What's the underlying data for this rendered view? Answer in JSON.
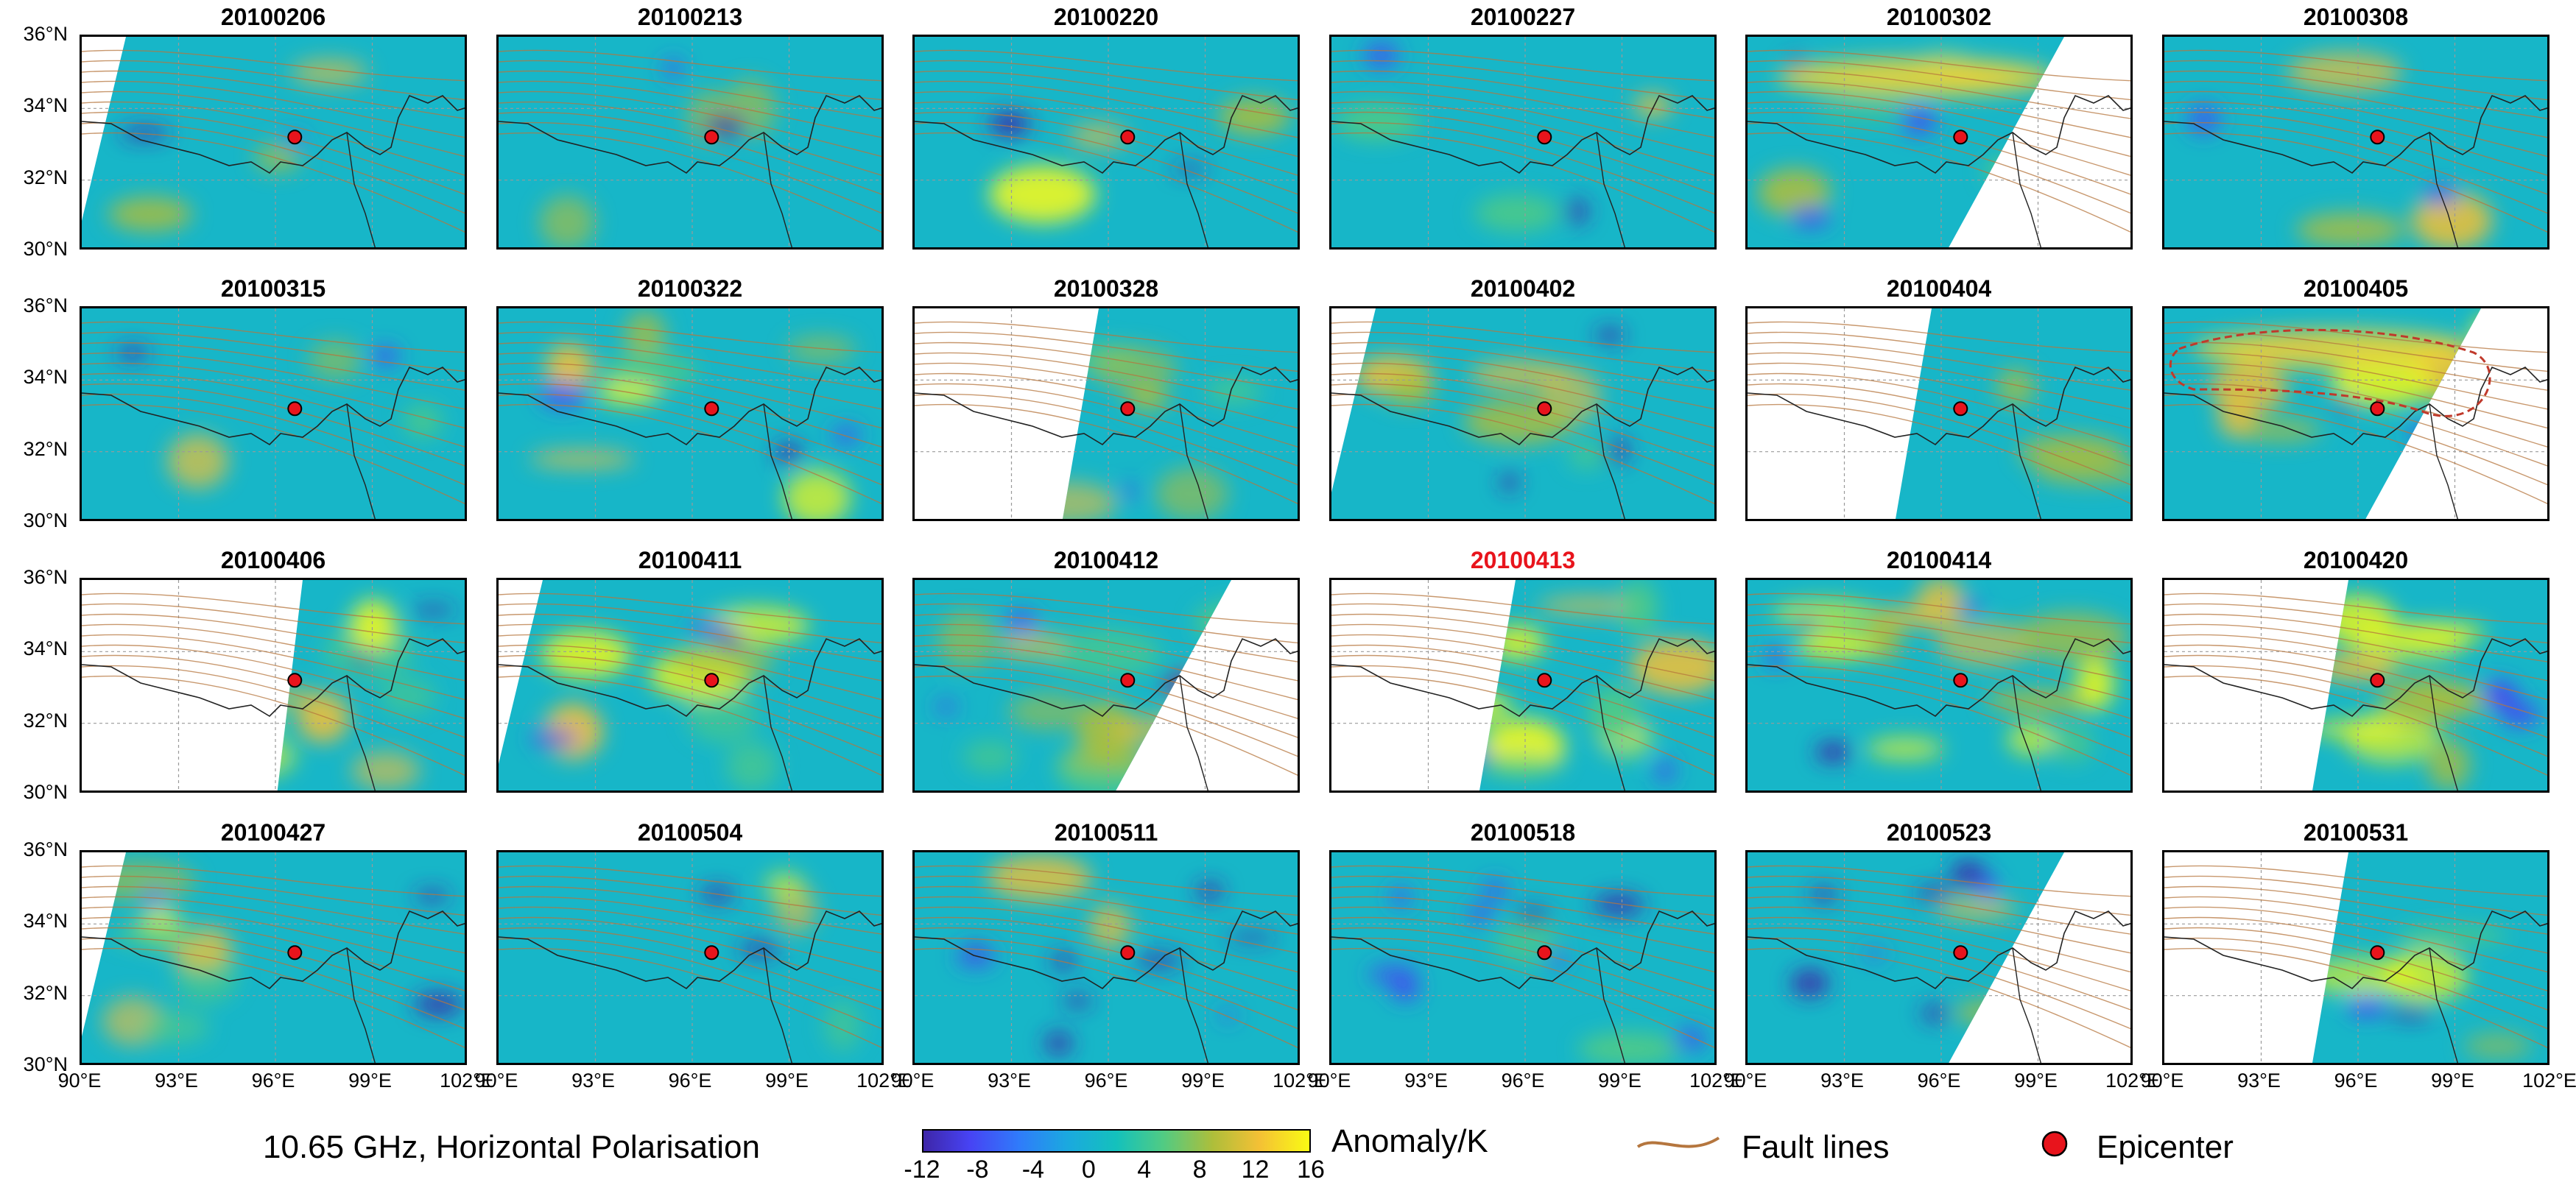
{
  "chart_data": {
    "type": "heatmap",
    "figure_caption": "10.65 GHz, Horizontal Polarisation",
    "grid": true,
    "panels": [
      {
        "date": "20100206",
        "highlight": false,
        "swath": "left-edge",
        "anomaly": "weak"
      },
      {
        "date": "20100213",
        "highlight": false,
        "swath": "full",
        "anomaly": "weak"
      },
      {
        "date": "20100220",
        "highlight": false,
        "swath": "full",
        "anomaly": "weak"
      },
      {
        "date": "20100227",
        "highlight": false,
        "swath": "full",
        "anomaly": "weak"
      },
      {
        "date": "20100302",
        "highlight": false,
        "swath": "right-cut",
        "anomaly": "north-band"
      },
      {
        "date": "20100308",
        "highlight": false,
        "swath": "full",
        "anomaly": "weak"
      },
      {
        "date": "20100315",
        "highlight": false,
        "swath": "full",
        "anomaly": "weak"
      },
      {
        "date": "20100322",
        "highlight": false,
        "swath": "full",
        "anomaly": "moderate"
      },
      {
        "date": "20100328",
        "highlight": false,
        "swath": "partial-left",
        "anomaly": "moderate"
      },
      {
        "date": "20100402",
        "highlight": false,
        "swath": "left-edge",
        "anomaly": "moderate"
      },
      {
        "date": "20100404",
        "highlight": false,
        "swath": "partial-left",
        "anomaly": "moderate"
      },
      {
        "date": "20100405",
        "highlight": false,
        "swath": "right-cut",
        "anomaly": "strong-band"
      },
      {
        "date": "20100406",
        "highlight": false,
        "swath": "narrow-left",
        "anomaly": "strong"
      },
      {
        "date": "20100411",
        "highlight": false,
        "swath": "left-edge",
        "anomaly": "moderate"
      },
      {
        "date": "20100412",
        "highlight": false,
        "swath": "right-cut",
        "anomaly": "strong"
      },
      {
        "date": "20100413",
        "highlight": true,
        "swath": "partial-left",
        "anomaly": "strong"
      },
      {
        "date": "20100414",
        "highlight": false,
        "swath": "full",
        "anomaly": "strong"
      },
      {
        "date": "20100420",
        "highlight": false,
        "swath": "partial-left",
        "anomaly": "strong"
      },
      {
        "date": "20100427",
        "highlight": false,
        "swath": "left-edge",
        "anomaly": "moderate"
      },
      {
        "date": "20100504",
        "highlight": false,
        "swath": "full",
        "anomaly": "weak"
      },
      {
        "date": "20100511",
        "highlight": false,
        "swath": "full",
        "anomaly": "cold"
      },
      {
        "date": "20100518",
        "highlight": false,
        "swath": "full",
        "anomaly": "cold"
      },
      {
        "date": "20100523",
        "highlight": false,
        "swath": "right-cut",
        "anomaly": "cold"
      },
      {
        "date": "20100531",
        "highlight": false,
        "swath": "partial-left",
        "anomaly": "moderate"
      }
    ],
    "lat_ticks": [
      "36°N",
      "34°N",
      "32°N",
      "30°N"
    ],
    "lon_ticks": [
      "90°E",
      "93°E",
      "96°E",
      "99°E",
      "102°E"
    ],
    "lat_range": [
      30,
      36
    ],
    "lon_range": [
      90,
      102
    ],
    "epicenter": {
      "lon": 96.6,
      "lat": 33.2
    },
    "colorbar": {
      "label": "Anomaly/K",
      "range": [
        -12,
        16
      ],
      "ticks": [
        "-12",
        "-8",
        "-4",
        "0",
        "4",
        "8",
        "12",
        "16"
      ]
    },
    "legend": {
      "fault_lines_label": "Fault lines",
      "epicenter_label": "Epicenter"
    },
    "colors": {
      "fault_line": "#b5763e",
      "epicenter": "#e8141c",
      "highlight_title": "#e8141c",
      "background_anomaly": "#17b6c8"
    }
  }
}
